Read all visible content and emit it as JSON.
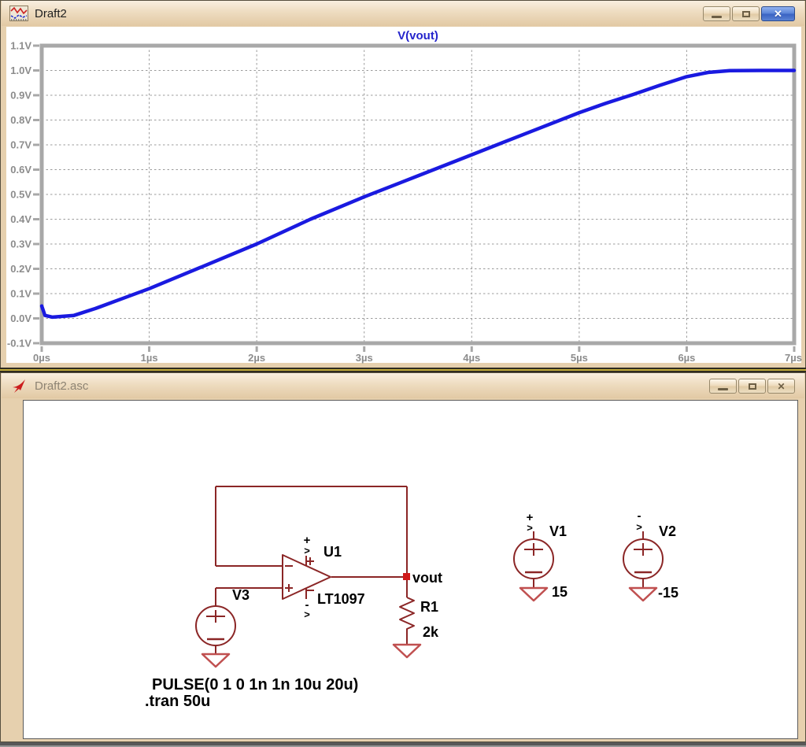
{
  "plot_window": {
    "title": "Draft2",
    "icon": "waveform-plot-icon",
    "controls": [
      "minimize",
      "restore",
      "close"
    ]
  },
  "schematic_window": {
    "title": "Draft2.asc",
    "icon": "ltspice-schematic-icon",
    "controls": [
      "minimize",
      "restore",
      "close"
    ]
  },
  "chart_data": {
    "type": "line",
    "title": "V(vout)",
    "title_color": "#2424cc",
    "trace_color": "#1a1ae0",
    "xlim": [
      0,
      7
    ],
    "ylim": [
      -0.1,
      1.1
    ],
    "x_unit": "µs",
    "y_unit": "V",
    "grid": true,
    "x_tick_values": [
      0,
      1,
      2,
      3,
      4,
      5,
      6,
      7
    ],
    "x_tick_labels": [
      "0µs",
      "1µs",
      "2µs",
      "3µs",
      "4µs",
      "5µs",
      "6µs",
      "7µs"
    ],
    "y_tick_values": [
      1.1,
      1.0,
      0.9,
      0.8,
      0.7,
      0.6,
      0.5,
      0.4,
      0.3,
      0.2,
      0.1,
      0.0,
      -0.1
    ],
    "y_tick_labels": [
      "1.1V",
      "1.0V",
      "0.9V",
      "0.8V",
      "0.7V",
      "0.6V",
      "0.5V",
      "0.4V",
      "0.3V",
      "0.2V",
      "0.1V",
      "0.0V",
      "-0.1V"
    ],
    "series": [
      {
        "name": "V(vout)",
        "x": [
          0,
          0.03,
          0.1,
          0.3,
          0.5,
          0.75,
          1,
          1.5,
          2,
          2.5,
          3,
          3.5,
          4,
          4.5,
          5,
          5.25,
          5.5,
          5.75,
          6,
          6.2,
          6.4,
          6.7,
          7
        ],
        "y": [
          0.05,
          0.012,
          0.005,
          0.012,
          0.04,
          0.08,
          0.12,
          0.21,
          0.3,
          0.4,
          0.49,
          0.575,
          0.66,
          0.745,
          0.83,
          0.868,
          0.903,
          0.94,
          0.975,
          0.992,
          0.999,
          1.0,
          1.0
        ]
      }
    ]
  },
  "schematic": {
    "opamp_ref": "U1",
    "opamp_part": "LT1097",
    "output_net": "vout",
    "resistor_ref": "R1",
    "resistor_value": "2k",
    "vin_ref": "V3",
    "vplus_ref": "V1",
    "vplus_value": "15",
    "vminus_ref": "V2",
    "vminus_value": "-15",
    "flag_plus": "+",
    "flag_minus": "-",
    "flag_arrow": ">",
    "directive_pulse": "PULSE(0 1 0 1n 1n 10u 20u)",
    "directive_tran": ".tran 50u",
    "wire_color": "#8b2626",
    "ground_color": "#c05050",
    "node_dot_color": "#d01818"
  }
}
